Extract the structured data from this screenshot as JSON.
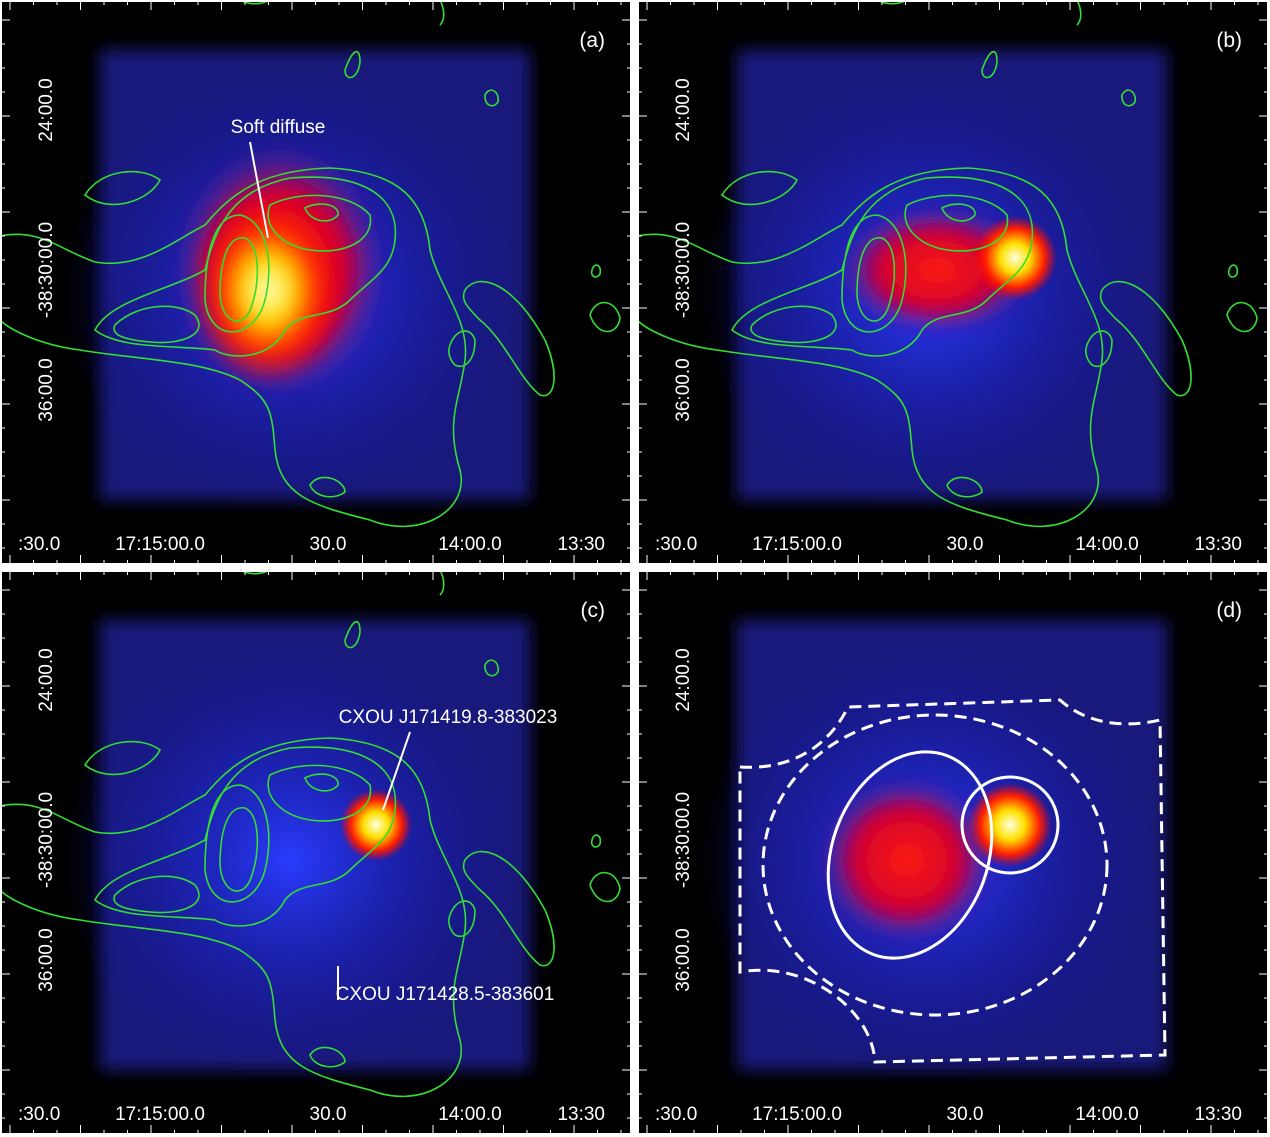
{
  "figure": {
    "x_tick_labels": [
      ":30.0",
      "17:15:00.0",
      "30.0",
      "14:00.0",
      "13:30"
    ],
    "y_tick_labels": [
      "24:00.0",
      "-38:30:00.0",
      "36:00.0"
    ],
    "panels": [
      {
        "label": "(a)",
        "annotations": [
          "Soft diffuse"
        ]
      },
      {
        "label": "(b)",
        "annotations": []
      },
      {
        "label": "(c)",
        "annotations": [
          "CXOU J171419.8-383023",
          "CXOU J171428.5-383601"
        ]
      },
      {
        "label": "(d)",
        "annotations": []
      }
    ]
  }
}
